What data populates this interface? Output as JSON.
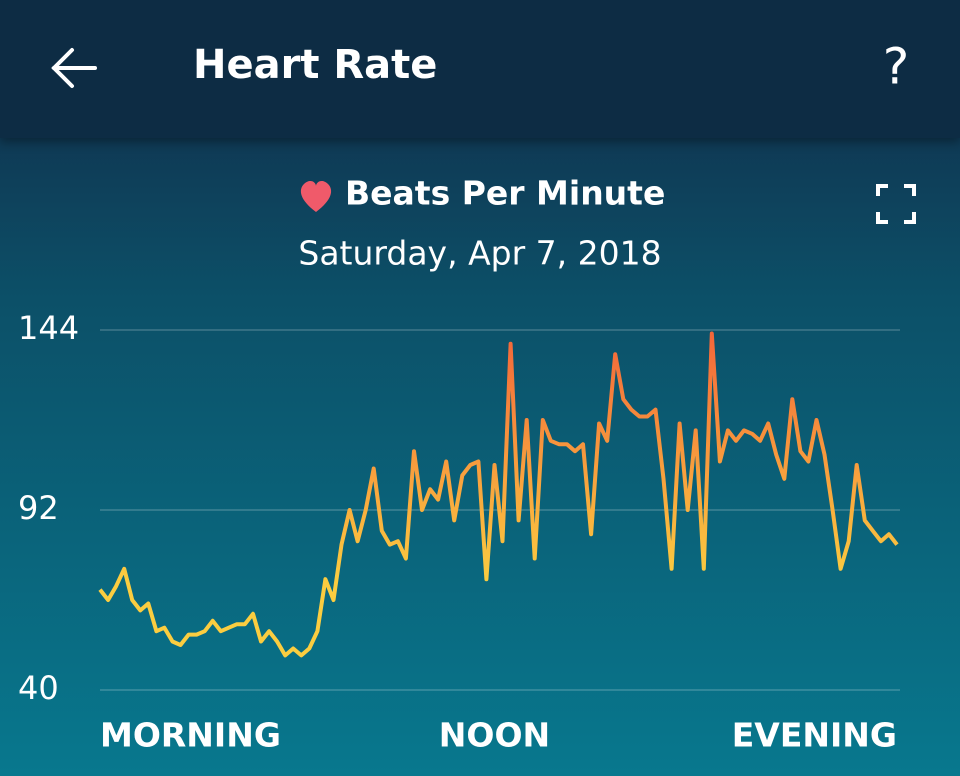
{
  "header": {
    "title": "Heart Rate"
  },
  "chart_data": {
    "type": "line",
    "title": "Saturday, Apr 7, 2018",
    "series": [
      {
        "name": "Beats Per Minute",
        "colors": [
          "#fbcd40",
          "#f3653a"
        ],
        "values": [
          69,
          66,
          70,
          75,
          66,
          63,
          65,
          57,
          58,
          54,
          53,
          56,
          56,
          57,
          60,
          57,
          58,
          59,
          59,
          62,
          54,
          57,
          54,
          50,
          52,
          50,
          52,
          57,
          72,
          66,
          82,
          92,
          83,
          92,
          104,
          86,
          82,
          83,
          78,
          109,
          92,
          98,
          95,
          106,
          89,
          102,
          105,
          106,
          72,
          105,
          83,
          140,
          89,
          118,
          78,
          118,
          112,
          111,
          111,
          109,
          111,
          85,
          117,
          112,
          137,
          124,
          121,
          119,
          119,
          121,
          101,
          75,
          117,
          92,
          115,
          75,
          143,
          106,
          115,
          112,
          115,
          114,
          112,
          117,
          108,
          101,
          124,
          109,
          106,
          118,
          108,
          92,
          75,
          83,
          105,
          89,
          86,
          83,
          85,
          82
        ]
      }
    ],
    "x": [
      0,
      1,
      2,
      3,
      4,
      5,
      6,
      7,
      8,
      9,
      10,
      11,
      12,
      13,
      14,
      15,
      16,
      17,
      18,
      19,
      20,
      21,
      22,
      23,
      24,
      25,
      26,
      27,
      28,
      29,
      30,
      31,
      32,
      33,
      34,
      35,
      36,
      37,
      38,
      39,
      40,
      41,
      42,
      43,
      44,
      45,
      46,
      47,
      48,
      49,
      50,
      51,
      52,
      53,
      54,
      55,
      56,
      57,
      58,
      59,
      60,
      61,
      62,
      63,
      64,
      65,
      66,
      67,
      68,
      69,
      70,
      71,
      72,
      73,
      74,
      75,
      76,
      77,
      78,
      79,
      80,
      81,
      82,
      83,
      84,
      85,
      86,
      87,
      88,
      89,
      90,
      91,
      92,
      93,
      94,
      95,
      96,
      97,
      98,
      99
    ],
    "xlim": [
      0,
      99
    ],
    "xticks": [
      {
        "value": 0,
        "label": "MORNING"
      },
      {
        "value": 49,
        "label": "NOON"
      },
      {
        "value": 99,
        "label": "EVENING"
      }
    ],
    "ylim": [
      40,
      144
    ],
    "yticks": [
      40,
      92,
      144
    ],
    "grid": true
  }
}
